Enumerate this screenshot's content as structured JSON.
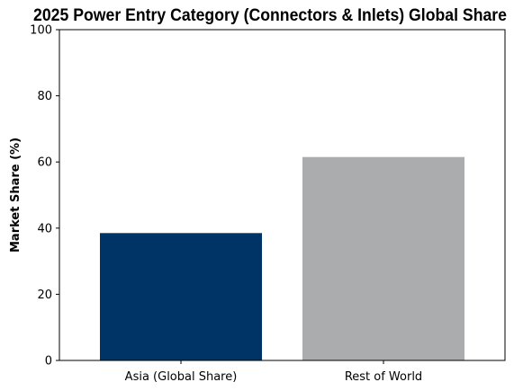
{
  "chart_data": {
    "type": "bar",
    "title": "2025 Power Entry Category (Connectors & Inlets) Global Share",
    "xlabel": "",
    "ylabel": "Market Share (%)",
    "ylim": [
      0,
      100
    ],
    "yticks": [
      0,
      20,
      40,
      60,
      80,
      100
    ],
    "categories": [
      "Asia (Global Share)",
      "Rest of World"
    ],
    "values": [
      38.5,
      61.5
    ],
    "colors": [
      "#003366",
      "#ABACAE"
    ],
    "grid": false,
    "legend": "none"
  }
}
